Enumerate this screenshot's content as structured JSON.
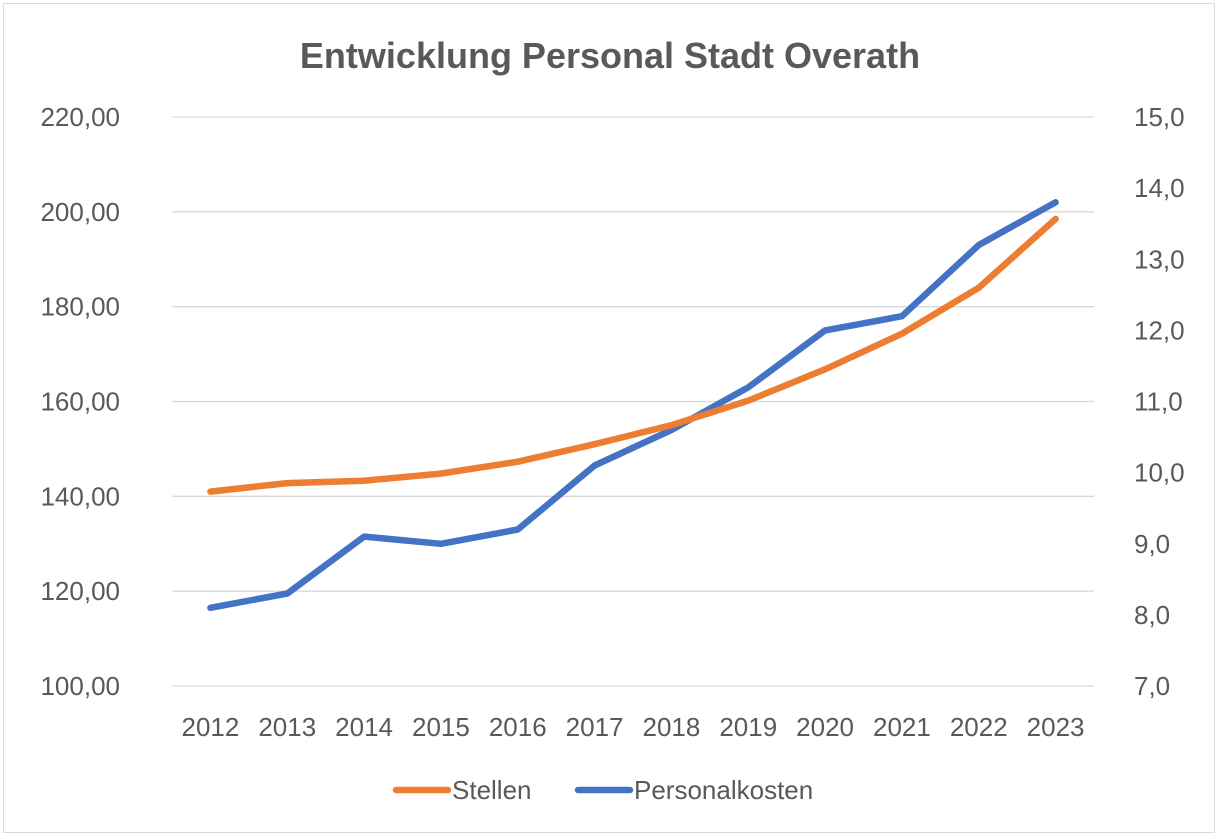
{
  "chart_data": {
    "type": "line",
    "title": "Entwicklung Personal Stadt Overath",
    "categories": [
      "2012",
      "2013",
      "2014",
      "2015",
      "2016",
      "2017",
      "2018",
      "2019",
      "2020",
      "2021",
      "2022",
      "2023"
    ],
    "y_left": {
      "ticks": [
        "100,00",
        "120,00",
        "140,00",
        "160,00",
        "180,00",
        "200,00",
        "220,00"
      ],
      "ylim": [
        100,
        220
      ]
    },
    "y_right": {
      "ticks": [
        "7,0",
        "8,0",
        "9,0",
        "10,0",
        "11,0",
        "12,0",
        "13,0",
        "14,0",
        "15,0"
      ],
      "ylim": [
        7,
        15
      ]
    },
    "grid": true,
    "legend_position": "bottom",
    "series": [
      {
        "name": "Stellen",
        "axis": "left",
        "color": "#ED7D31",
        "values": [
          141.0,
          142.8,
          143.3,
          144.8,
          147.3,
          151.0,
          155.0,
          160.2,
          166.8,
          174.3,
          184.0,
          198.5
        ]
      },
      {
        "name": "Personalkosten",
        "axis": "right",
        "color": "#4472C4",
        "values": [
          8.1,
          8.3,
          9.1,
          9.0,
          9.2,
          10.1,
          10.6,
          11.2,
          12.0,
          12.2,
          13.2,
          13.8
        ]
      }
    ]
  }
}
